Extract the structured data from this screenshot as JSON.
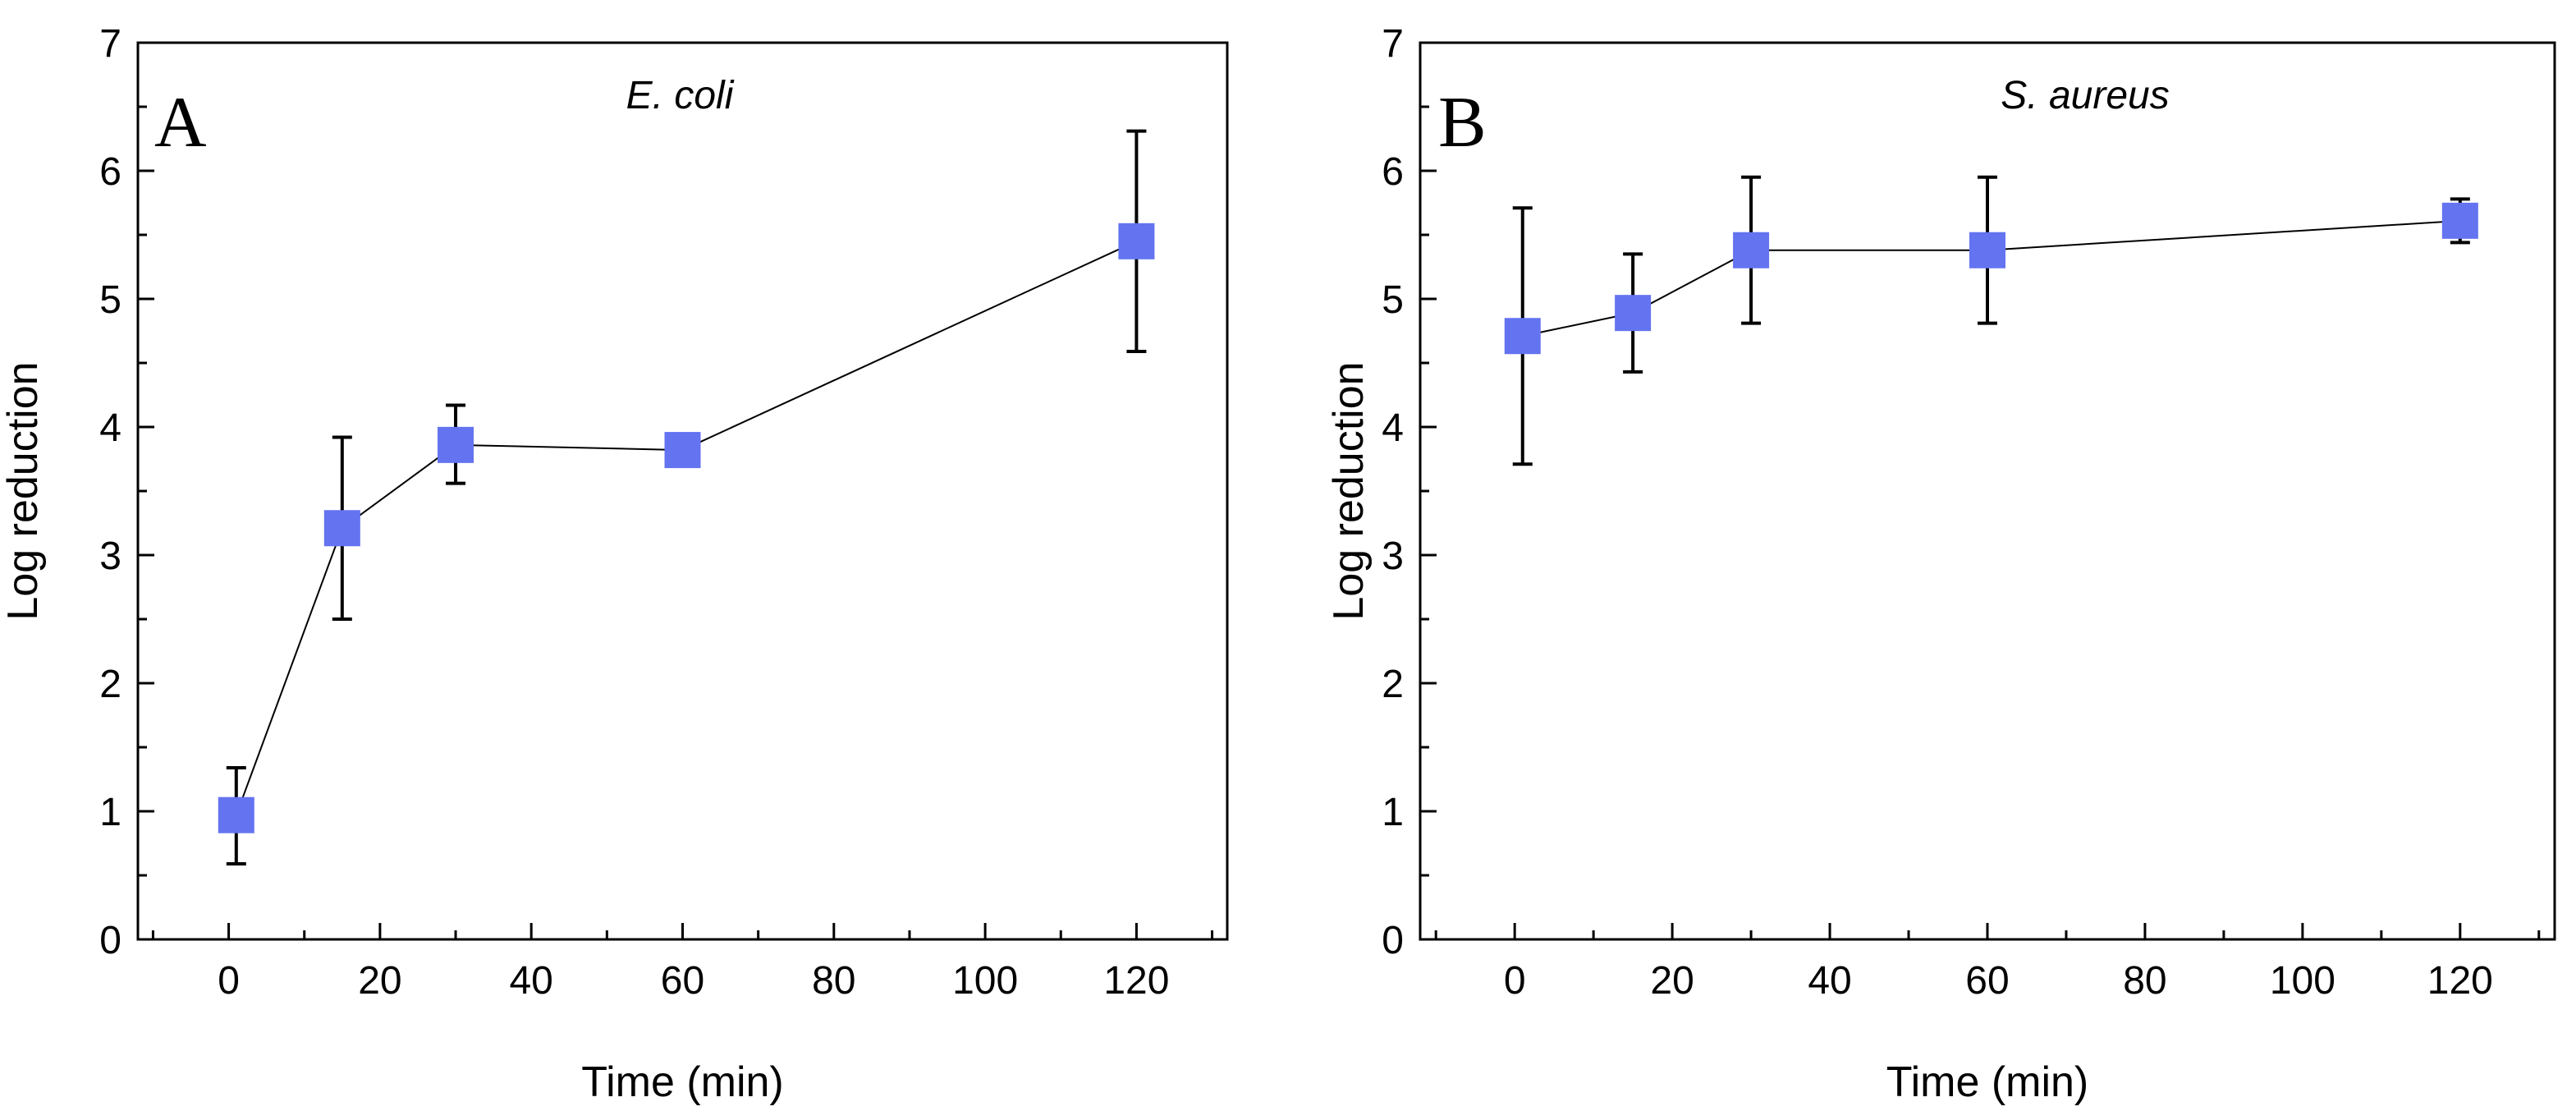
{
  "chart_data": [
    {
      "type": "scatter",
      "panel_label": "A",
      "organism": "E. coli",
      "xlabel": "Time (min)",
      "ylabel": "Log reduction",
      "xlim": [
        -12,
        132
      ],
      "ylim": [
        0,
        7
      ],
      "x_ticks": [
        0,
        20,
        40,
        60,
        80,
        100,
        120
      ],
      "y_ticks": [
        0,
        1,
        2,
        3,
        4,
        5,
        6,
        7
      ],
      "marker_color": "#6473f0",
      "series": [
        {
          "name": "E. coli",
          "x": [
            1,
            15,
            30,
            60,
            120
          ],
          "y": [
            0.97,
            3.21,
            3.86,
            3.82,
            5.45
          ],
          "err_low": [
            0.38,
            0.71,
            0.3,
            0.1,
            0.86
          ],
          "err_high": [
            0.37,
            0.71,
            0.31,
            0.1,
            0.86
          ]
        }
      ]
    },
    {
      "type": "scatter",
      "panel_label": "B",
      "organism": "S. aureus",
      "xlabel": "Time (min)",
      "ylabel": "Log reduction",
      "xlim": [
        -12,
        132
      ],
      "ylim": [
        0,
        7
      ],
      "x_ticks": [
        0,
        20,
        40,
        60,
        80,
        100,
        120
      ],
      "y_ticks": [
        0,
        1,
        2,
        3,
        4,
        5,
        6,
        7
      ],
      "marker_color": "#6473f0",
      "series": [
        {
          "name": "S. aureus",
          "x": [
            1,
            15,
            30,
            60,
            120
          ],
          "y": [
            4.71,
            4.89,
            5.38,
            5.38,
            5.61
          ],
          "err_low": [
            1.0,
            0.46,
            0.57,
            0.57,
            0.17
          ],
          "err_high": [
            1.0,
            0.46,
            0.57,
            0.57,
            0.17
          ]
        }
      ]
    }
  ]
}
